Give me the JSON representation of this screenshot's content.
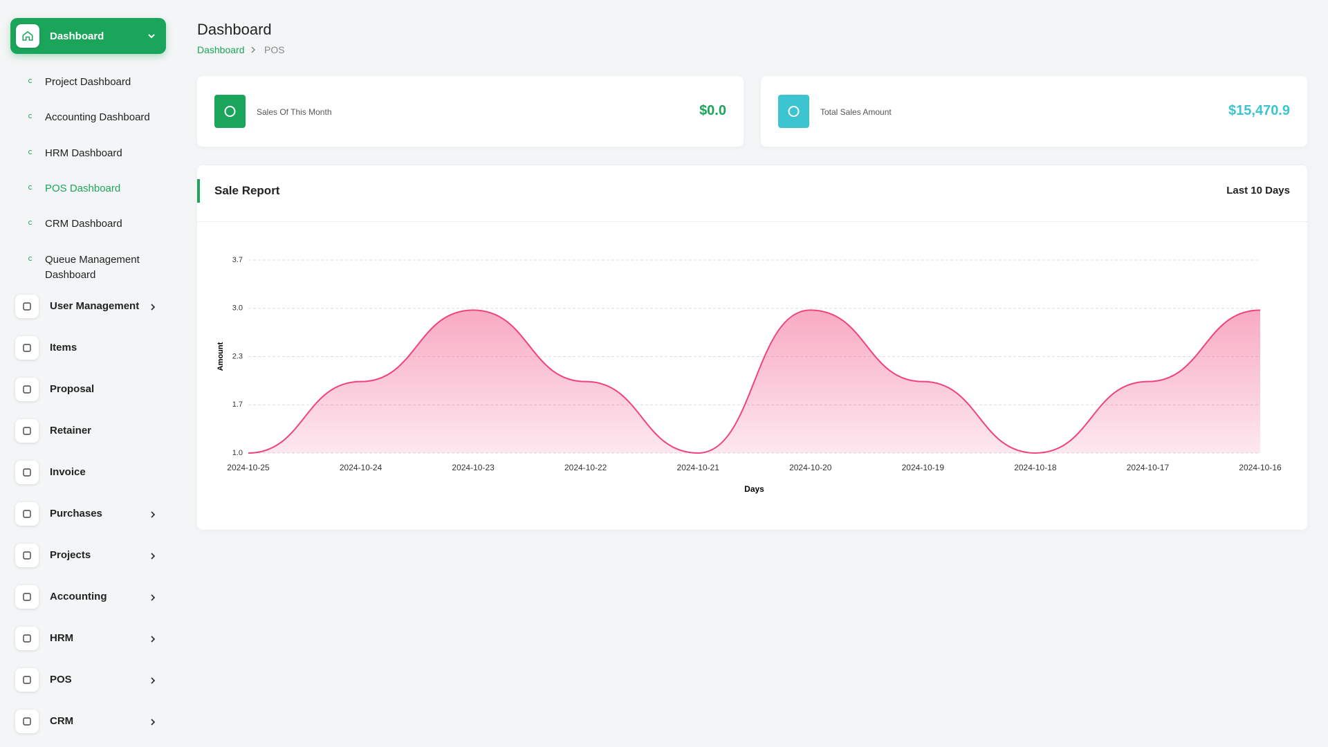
{
  "sidebar": {
    "active": {
      "label": "Dashboard"
    },
    "submenu": [
      {
        "label": "Project Dashboard"
      },
      {
        "label": "Accounting Dashboard"
      },
      {
        "label": "HRM Dashboard"
      },
      {
        "label": "POS Dashboard",
        "current": true
      },
      {
        "label": "CRM Dashboard"
      },
      {
        "label": "Queue Management Dashboard"
      }
    ],
    "menu": [
      {
        "label": "User Management",
        "expandable": true
      },
      {
        "label": "Items",
        "expandable": false
      },
      {
        "label": "Proposal",
        "expandable": false
      },
      {
        "label": "Retainer",
        "expandable": false
      },
      {
        "label": "Invoice",
        "expandable": false
      },
      {
        "label": "Purchases",
        "expandable": true
      },
      {
        "label": "Projects",
        "expandable": true
      },
      {
        "label": "Accounting",
        "expandable": true
      },
      {
        "label": "HRM",
        "expandable": true
      },
      {
        "label": "POS",
        "expandable": true
      },
      {
        "label": "CRM",
        "expandable": true
      }
    ]
  },
  "header": {
    "title": "Dashboard",
    "breadcrumb": [
      "Dashboard",
      "POS"
    ]
  },
  "cards": [
    {
      "label": "Sales Of This Month",
      "value": "$0.0",
      "color": "#1aa55a"
    },
    {
      "label": "Total Sales Amount",
      "value": "$15,470.9",
      "color": "#3cc4d1"
    }
  ],
  "report": {
    "title": "Sale Report",
    "period": "Last 10 Days"
  },
  "chart_data": {
    "type": "area",
    "x_label": "Days",
    "y_label": "Amount",
    "categories": [
      "2024-10-25",
      "2024-10-24",
      "2024-10-23",
      "2024-10-22",
      "2024-10-21",
      "2024-10-20",
      "2024-10-19",
      "2024-10-18",
      "2024-10-17",
      "2024-10-16"
    ],
    "values": [
      1,
      2,
      3,
      2,
      1,
      3,
      2,
      1,
      2,
      3
    ],
    "color": "#f0437a",
    "ylim": [
      1,
      3.7
    ],
    "yticks": [
      {
        "value": 1,
        "label": "1.0"
      },
      {
        "value": 1.675,
        "label": "1.7"
      },
      {
        "value": 2.35,
        "label": "2.3"
      },
      {
        "value": 3.025,
        "label": "3.0"
      },
      {
        "value": 3.7,
        "label": "3.7"
      }
    ],
    "grid": true
  }
}
